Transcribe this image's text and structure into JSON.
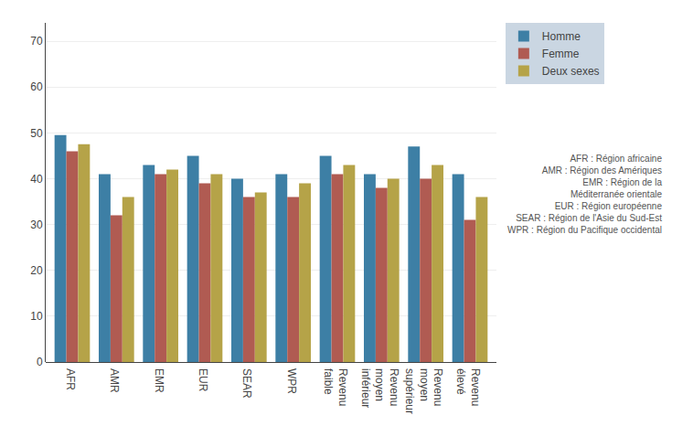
{
  "chart_data": {
    "type": "bar",
    "categories": [
      "AFR",
      "AMR",
      "EMR",
      "EUR",
      "SEAR",
      "WPR",
      "Revenu\nfaible",
      "Revenu\nmoyen\ninférieur",
      "Revenu\nmoyen\nsupérieur",
      "Revenu\nélevé"
    ],
    "series": [
      {
        "name": "Homme",
        "color": "#3d7fa5",
        "values": [
          49.5,
          41,
          43,
          45,
          40,
          41,
          45,
          41,
          47,
          41
        ]
      },
      {
        "name": "Femme",
        "color": "#b05b52",
        "values": [
          46,
          32,
          41,
          39,
          36,
          36,
          41,
          38,
          40,
          31
        ]
      },
      {
        "name": "Deux sexes",
        "color": "#b5a348",
        "values": [
          47.5,
          36,
          42,
          41,
          37,
          39,
          43,
          40,
          43,
          36
        ]
      }
    ],
    "annotations": [
      "AFR : Région africaine\nAMR : Région des Amériques\nEMR : Région de la\nMéditerranée orientale\nEUR : Région européenne\nSEAR : Région de l'Asie du Sud-Est\nWPR : Région du Pacifique occidental"
    ],
    "ylim": [
      0,
      74
    ],
    "yticks": [
      0,
      10,
      20,
      30,
      40,
      50,
      60,
      70
    ],
    "grid": true,
    "legend": "right"
  }
}
